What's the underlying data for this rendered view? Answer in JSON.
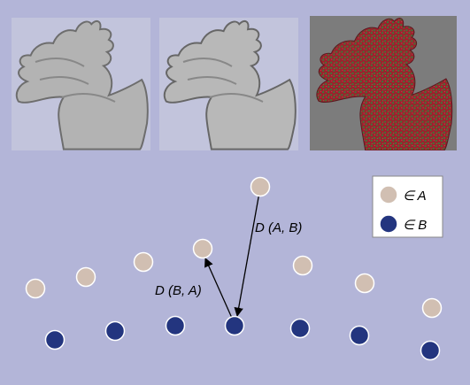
{
  "images": [
    {
      "name": "dragon-render-left",
      "tone": "gray"
    },
    {
      "name": "dragon-render-middle",
      "tone": "gray"
    },
    {
      "name": "dragon-difference-map",
      "tone": "red-green"
    }
  ],
  "colors": {
    "background": "#b3b5d8",
    "set_a_fill": "#d1bfb2",
    "set_a_stroke": "#ffffff",
    "set_b_fill": "#23357f",
    "set_b_stroke": "#ffffff",
    "dragon_gray": "#b9b9b9",
    "diff_red": "#9e1f2c",
    "diff_green": "#3c7a3a",
    "legend_bg": "#ffffff"
  },
  "legend": {
    "a_label": "∈ A",
    "b_label": "∈ B"
  },
  "labels": {
    "d_ab": "D (A, B)",
    "d_ba": "D (B, A)"
  }
}
